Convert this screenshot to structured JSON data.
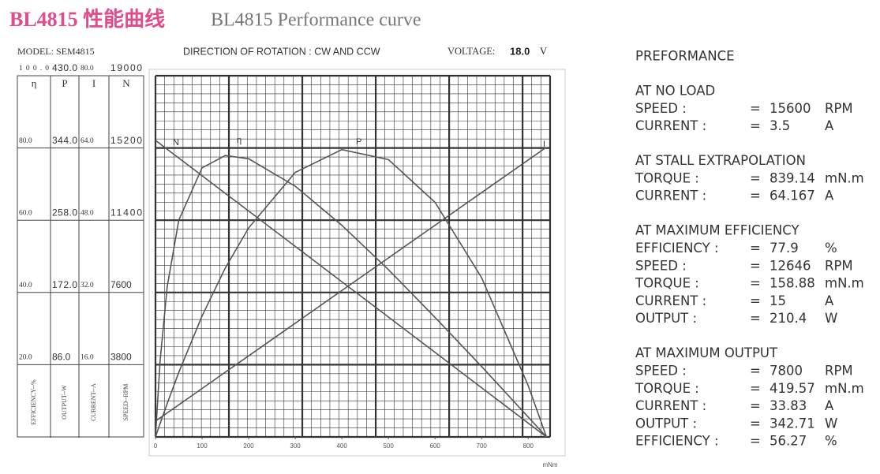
{
  "header": {
    "title_cn": "BL4815 性能曲线",
    "title_en": "BL4815 Performance curve"
  },
  "chart_data": {
    "type": "line",
    "model": "MODEL: SEM4815",
    "direction": "DIRECTION OF ROTATION : CW AND CCW",
    "voltage_label": "VOLTAGE:",
    "voltage": "18.0",
    "voltage_unit": "V",
    "x_label": "mNm",
    "x": [
      0,
      10,
      25,
      50,
      100,
      150,
      200,
      300,
      400,
      500,
      600,
      700,
      800,
      839.14
    ],
    "xlim": [
      0,
      847
    ],
    "xticks": [
      0,
      100,
      200,
      300,
      400,
      500,
      600,
      700,
      800
    ],
    "grid": true,
    "series": [
      {
        "name": "η",
        "axis_label": "EFFICIENCY--%",
        "color": "#555555",
        "ylim": [
          0,
          100
        ],
        "yticks": [
          {
            "value": 20,
            "label": "20.0"
          },
          {
            "value": 40,
            "label": "40.0"
          },
          {
            "value": 60,
            "label": "60.0"
          },
          {
            "value": 80,
            "label": "80.0"
          },
          {
            "value": 100,
            "label": "100.0"
          }
        ],
        "values": [
          0,
          21.2,
          41.5,
          60.0,
          74.5,
          77.9,
          77.0,
          69.4,
          58.6,
          46.3,
          33.1,
          19.5,
          5.5,
          0
        ]
      },
      {
        "name": "P",
        "axis_label": "OUTPUT--W",
        "color": "#555555",
        "ylim": [
          0,
          430
        ],
        "yticks": [
          {
            "value": 86,
            "label": "86.0"
          },
          {
            "value": 172,
            "label": "172.0"
          },
          {
            "value": 258,
            "label": "258.0"
          },
          {
            "value": 344,
            "label": "344.0"
          },
          {
            "value": 430,
            "label": "430.0"
          }
        ],
        "values": [
          0,
          16.1,
          39.6,
          76.8,
          143.9,
          201.2,
          248.9,
          314.9,
          342.0,
          330.1,
          279.3,
          189.6,
          61.0,
          0
        ]
      },
      {
        "name": "I",
        "axis_label": "CURRENT--A",
        "color": "#555555",
        "ylim": [
          0,
          80
        ],
        "yticks": [
          {
            "value": 16,
            "label": "16.0"
          },
          {
            "value": 32,
            "label": "32.0"
          },
          {
            "value": 48,
            "label": "48.0"
          },
          {
            "value": 64,
            "label": "64.0"
          },
          {
            "value": 80,
            "label": "80.0"
          }
        ],
        "values": [
          3.5,
          4.22,
          5.31,
          7.11,
          10.73,
          14.34,
          17.96,
          25.19,
          32.42,
          39.65,
          46.88,
          54.11,
          61.34,
          64.167
        ]
      },
      {
        "name": "N",
        "axis_label": "SPEED--RPM",
        "color": "#555555",
        "ylim": [
          0,
          19000
        ],
        "yticks": [
          3800,
          7600,
          11400,
          15200,
          19000
        ],
        "values": [
          15600,
          15414,
          15135,
          14670,
          13741,
          12811,
          11882,
          10023,
          8164,
          6305,
          4446,
          2587,
          728,
          0
        ]
      }
    ]
  },
  "performance": {
    "title": "PREFORMANCE",
    "separator": "=",
    "sections": [
      {
        "heading": "AT NO LOAD",
        "rows": [
          [
            "SPEED :",
            "15600",
            "RPM"
          ],
          [
            "CURRENT :",
            "3.5",
            "A"
          ]
        ]
      },
      {
        "heading": "AT STALL EXTRAPOLATION",
        "rows": [
          [
            "TORQUE :",
            "839.14",
            "mN.m"
          ],
          [
            "CURRENT :",
            "64.167",
            "A"
          ]
        ]
      },
      {
        "heading": "AT MAXIMUM EFFICIENCY",
        "rows": [
          [
            "EFFICIENCY :",
            "77.9",
            "%"
          ],
          [
            "SPEED :",
            "12646",
            "RPM"
          ],
          [
            "TORQUE :",
            "158.88",
            "mN.m"
          ],
          [
            "CURRENT :",
            "15",
            "A"
          ],
          [
            "OUTPUT :",
            "210.4",
            "W"
          ]
        ]
      },
      {
        "heading": "AT MAXIMUM OUTPUT",
        "rows": [
          [
            "SPEED :",
            "7800",
            "RPM"
          ],
          [
            "TORQUE :",
            "419.57",
            "mN.m"
          ],
          [
            "CURRENT :",
            "33.83",
            "A"
          ],
          [
            "OUTPUT :",
            "342.71",
            "W"
          ],
          [
            "EFFICIENCY :",
            "56.27",
            "%"
          ]
        ]
      }
    ]
  }
}
